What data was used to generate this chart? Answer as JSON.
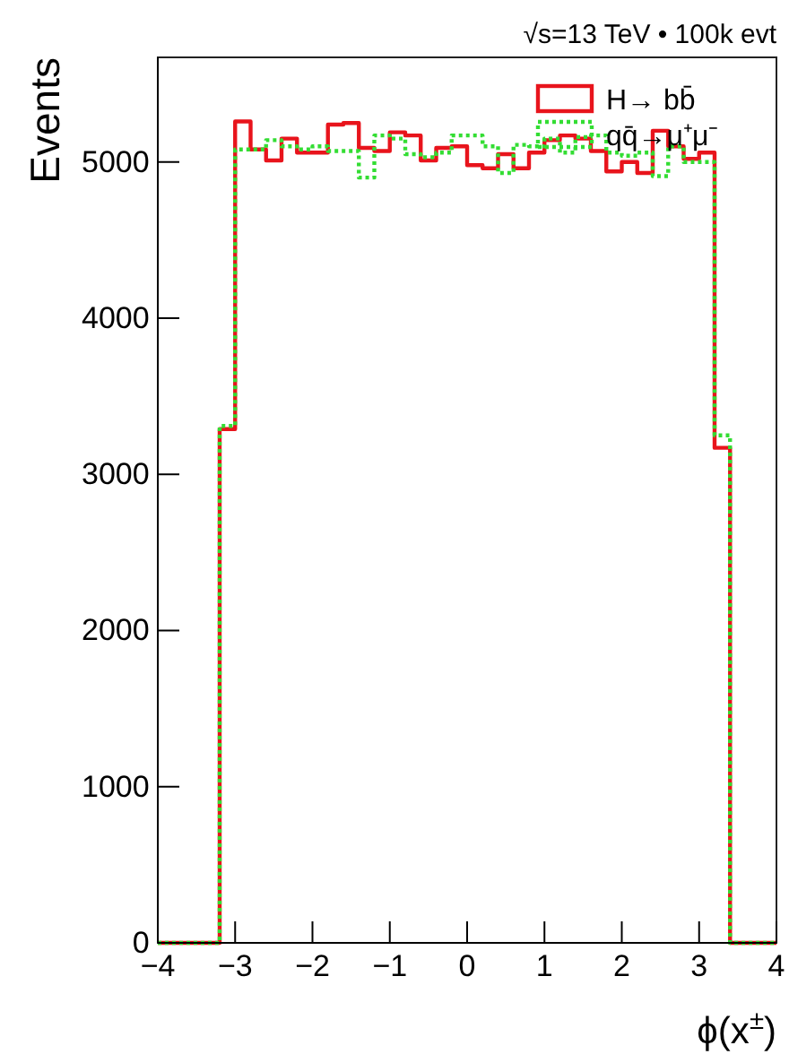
{
  "chart_data": {
    "type": "histogram",
    "title": "√s=13 TeV • 100k evt",
    "xlabel": "ϕ(x$^{±}$)",
    "ylabel": "Events",
    "bins": [
      -4,
      -3.8,
      -3.6,
      -3.4,
      -3.2,
      -3,
      -2.8,
      -2.6,
      -2.4,
      -2.2,
      -2,
      -1.8,
      -1.6,
      -1.4,
      -1.2,
      -1,
      -0.8,
      -0.6,
      -0.4,
      -0.2,
      0,
      0.2,
      0.4,
      0.6,
      0.8,
      1,
      1.2,
      1.4,
      1.6,
      1.8,
      2,
      2.2,
      2.4,
      2.6,
      2.8,
      3,
      3.2,
      3.4,
      3.6,
      3.8,
      4
    ],
    "series": [
      {
        "name": "H→ bb̄",
        "color": "#e8141c",
        "line_style": "solid",
        "values": [
          0,
          0,
          0,
          0,
          3290,
          5260,
          5080,
          5010,
          5150,
          5060,
          5060,
          5240,
          5250,
          5090,
          5070,
          5190,
          5170,
          5010,
          5090,
          5100,
          4980,
          4960,
          5050,
          4960,
          5060,
          5140,
          5170,
          5150,
          5070,
          4940,
          5000,
          4930,
          5200,
          5100,
          5020,
          5060,
          3170,
          0,
          0,
          0
        ]
      },
      {
        "name": "qq̄→μ⁺μ⁻",
        "color": "#33dd33",
        "line_style": "dotted",
        "values": [
          0,
          0,
          0,
          0,
          3310,
          5080,
          5080,
          5140,
          5100,
          5080,
          5100,
          5070,
          5070,
          4900,
          5170,
          5150,
          5050,
          5030,
          5060,
          5170,
          5170,
          5100,
          4930,
          5110,
          5100,
          5150,
          5060,
          5160,
          5170,
          5060,
          5040,
          5060,
          4910,
          5100,
          5000,
          5000,
          3250,
          0,
          0,
          0
        ]
      }
    ],
    "xlim": [
      -4,
      4
    ],
    "ylim": [
      0,
      5670
    ],
    "xticks": [
      -4,
      -3,
      -2,
      -1,
      0,
      1,
      2,
      3,
      4
    ],
    "yticks": [
      0,
      1000,
      2000,
      3000,
      4000,
      5000
    ],
    "grid": false,
    "legend": "top right"
  }
}
